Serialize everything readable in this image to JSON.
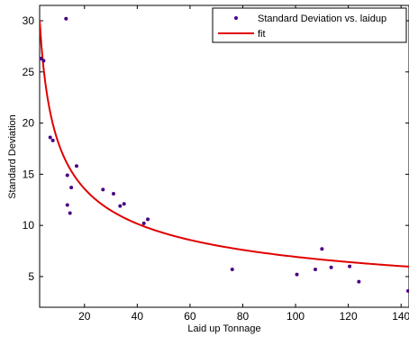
{
  "chart_data": {
    "type": "scatter",
    "xlabel": "Laid up Tonnage",
    "ylabel": "Standard Deviation",
    "xlim": [
      3,
      143
    ],
    "ylim": [
      2,
      31.5
    ],
    "xticks": [
      20,
      40,
      60,
      80,
      100,
      120,
      140
    ],
    "yticks": [
      5,
      10,
      15,
      20,
      25,
      30
    ],
    "legend_position": "top-right",
    "grid": false,
    "series": [
      {
        "name": "Standard Deviation vs. laidup",
        "kind": "scatter",
        "color": "#4b0082",
        "x": [
          3.5,
          4.5,
          7,
          8,
          13,
          13.5,
          13.5,
          14.5,
          15,
          17,
          27,
          31,
          33.5,
          35,
          42.5,
          44,
          76,
          100.5,
          107.5,
          110,
          113.5,
          120.5,
          124,
          143
        ],
        "y": [
          26.3,
          26.1,
          18.6,
          18.3,
          30.2,
          14.9,
          12.0,
          11.2,
          13.7,
          15.8,
          13.5,
          13.1,
          11.9,
          12.1,
          10.2,
          10.6,
          5.7,
          5.2,
          5.7,
          7.7,
          5.9,
          6.0,
          4.5,
          3.6
        ]
      },
      {
        "name": "fit",
        "kind": "line",
        "color": "#e00000",
        "model": {
          "a": 47.5,
          "b": -0.418
        }
      }
    ]
  }
}
